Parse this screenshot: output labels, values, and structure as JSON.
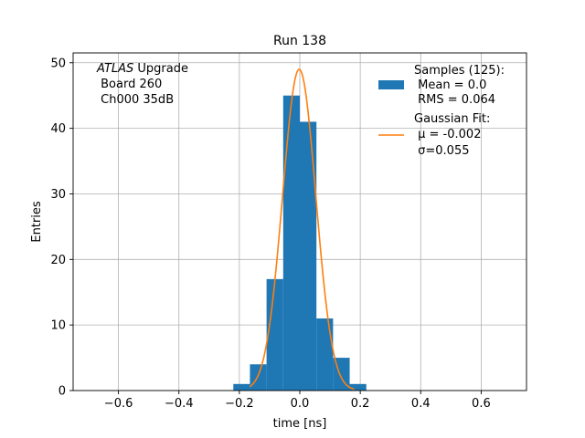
{
  "chart_data": {
    "type": "bar",
    "title": "Run 138",
    "xlabel": "time [ns]",
    "ylabel": "Entries",
    "xlim": [
      -0.75,
      0.75
    ],
    "ylim": [
      0,
      51.5
    ],
    "grid": true,
    "xticks": [
      -0.6,
      -0.4,
      -0.2,
      0.0,
      0.2,
      0.4,
      0.6
    ],
    "xtick_labels": [
      "−0.6",
      "−0.4",
      "−0.2",
      "0.0",
      "0.2",
      "0.4",
      "0.6"
    ],
    "yticks": [
      0,
      10,
      20,
      30,
      40,
      50
    ],
    "ytick_labels": [
      "0",
      "10",
      "20",
      "30",
      "40",
      "50"
    ],
    "annotation": {
      "line1_italic": "ATLAS",
      "line1_rest": " Upgrade",
      "line2": " Board 260",
      "line3": " Ch000 35dB"
    },
    "histogram": {
      "bin_edges": [
        -0.22,
        -0.165,
        -0.11,
        -0.055,
        0.0,
        0.055,
        0.11,
        0.165,
        0.22
      ],
      "counts": [
        1,
        4,
        17,
        45,
        41,
        11,
        5,
        1
      ],
      "color": "#1f77b4"
    },
    "gaussian_fit": {
      "amplitude": 49,
      "mu": -0.002,
      "sigma": 0.055,
      "x_range": [
        -0.165,
        0.18
      ],
      "color": "#ff7f0e"
    },
    "legend": {
      "position": "top-right",
      "hist_lines": [
        "Samples (125):",
        " Mean = 0.0",
        " RMS = 0.064"
      ],
      "fit_lines": [
        "Gaussian Fit:",
        " μ = -0.002",
        " σ=0.055"
      ]
    }
  }
}
